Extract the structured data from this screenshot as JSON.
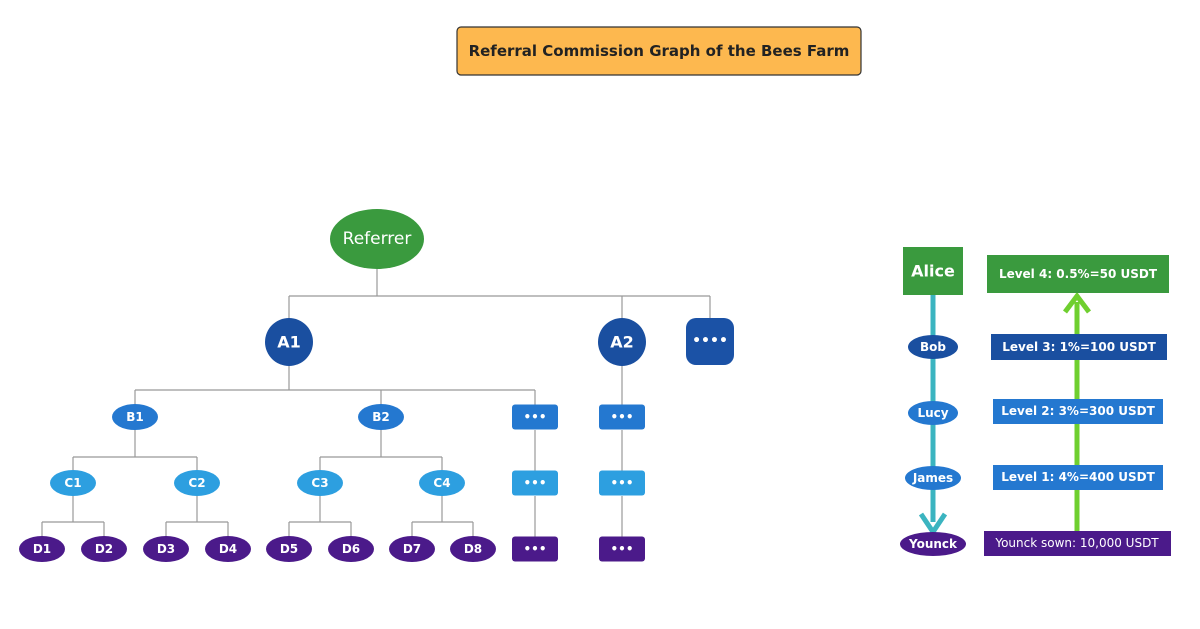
{
  "title": "Referral Commission Graph of the Bees Farm",
  "tree": {
    "root": "Referrer",
    "level_a": [
      "A1",
      "A2",
      "••••"
    ],
    "level_b": [
      "B1",
      "B2",
      "•••",
      "•••"
    ],
    "level_c": [
      "C1",
      "C2",
      "C3",
      "C4",
      "•••",
      "•••"
    ],
    "level_d": [
      "D1",
      "D2",
      "D3",
      "D4",
      "D5",
      "D6",
      "D7",
      "D8",
      "•••",
      "•••"
    ]
  },
  "chain": [
    "Alice",
    "Bob",
    "Lucy",
    "James",
    "Younck"
  ],
  "commissions": [
    "Level 4: 0.5%=50 USDT",
    "Level 3: 1%=100 USDT",
    "Level 2: 3%=300 USDT",
    "Level 1: 4%=400 USDT",
    "Younck sown: 10,000 USDT"
  ]
}
